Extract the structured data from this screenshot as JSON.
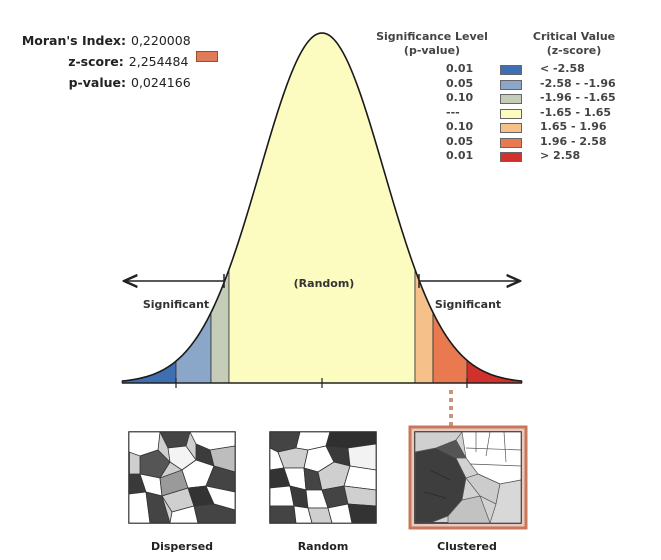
{
  "stats": {
    "morans_label": "Moran's Index:",
    "morans_value": "0,220008",
    "z_label": "z-score:",
    "z_value": "2,254484",
    "z_color": "#e07b5a",
    "p_label": "p-value:",
    "p_value": "0,024166"
  },
  "legend": {
    "sig_header_1": "Significance Level",
    "sig_header_2": "(p-value)",
    "crit_header_1": "Critical Value",
    "crit_header_2": "(z-score)",
    "rows": [
      {
        "sig": "0.01",
        "crit": "< -2.58",
        "color": "#3e6fb0"
      },
      {
        "sig": "0.05",
        "crit": "-2.58 - -1.96",
        "color": "#8aa6c8"
      },
      {
        "sig": "0.10",
        "crit": "-1.96 - -1.65",
        "color": "#c5cdb8"
      },
      {
        "sig": "---",
        "crit": "-1.65 - 1.65",
        "color": "#fdfcc0"
      },
      {
        "sig": "0.10",
        "crit": "1.65 - 1.96",
        "color": "#f6c08a"
      },
      {
        "sig": "0.05",
        "crit": "1.96 - 2.58",
        "color": "#e97a50"
      },
      {
        "sig": "0.01",
        "crit": "> 2.58",
        "color": "#d0312d"
      }
    ]
  },
  "curve": {
    "random_label": "(Random)",
    "sig_left_label": "Significant",
    "sig_right_label": "Significant"
  },
  "maps": {
    "dispersed": "Dispersed",
    "random": "Random",
    "clustered": "Clustered",
    "highlight_color": "#c9775a"
  }
}
